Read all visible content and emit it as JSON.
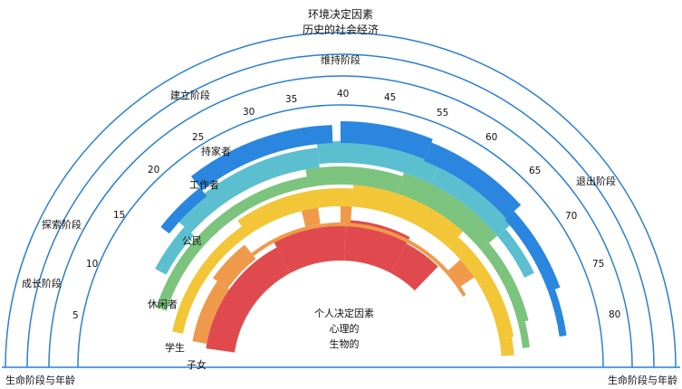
{
  "title_lines": [
    "环境决定因素",
    "历史的社会经济"
  ],
  "center_lines": [
    "个人决定因素",
    "心理的",
    "生物的"
  ],
  "baseline": {
    "left_label": "生命阶段与年龄",
    "right_label": "生命阶段与年龄"
  },
  "stages": [
    "成长阶段",
    "探索阶段",
    "建立阶段",
    "维持阶段",
    "退出阶段"
  ],
  "ages": [
    "5",
    "10",
    "15",
    "20",
    "25",
    "30",
    "35",
    "40",
    "45",
    "55",
    "60",
    "65",
    "70",
    "75",
    "80"
  ],
  "roles": [
    "子女",
    "学生",
    "休闲者",
    "公民",
    "工作者",
    "持家者"
  ],
  "colors": {
    "outline": "#2a7fd0",
    "子女": "#e04a4e",
    "学生": "#ef9a4a",
    "休闲者": "#f2c636",
    "公民": "#7cc47d",
    "工作者": "#5bbfd0",
    "持家者": "#2a86de"
  }
}
